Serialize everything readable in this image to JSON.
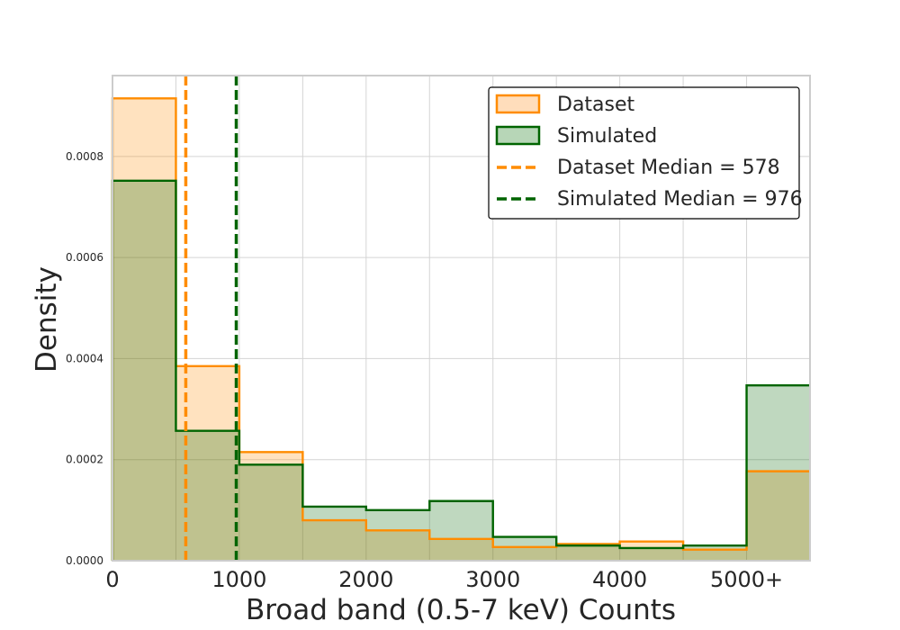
{
  "chart_data": {
    "type": "histogram",
    "xlabel": "Broad band (0.5-7 keV) Counts",
    "ylabel": "Density",
    "xlim": [
      0,
      5500
    ],
    "ylim": [
      0,
      0.00096
    ],
    "grid": true,
    "legend_position": "top-right",
    "bin_edges": [
      0,
      500,
      1000,
      1500,
      2000,
      2500,
      3000,
      3500,
      4000,
      4500,
      5000,
      5500
    ],
    "x_ticks": [
      {
        "value": 0,
        "label": "0"
      },
      {
        "value": 1000,
        "label": "1000"
      },
      {
        "value": 2000,
        "label": "2000"
      },
      {
        "value": 3000,
        "label": "3000"
      },
      {
        "value": 4000,
        "label": "4000"
      },
      {
        "value": 5000,
        "label": "5000+"
      }
    ],
    "y_ticks": [
      {
        "value": 0,
        "label": "0.0000"
      },
      {
        "value": 0.0002,
        "label": "0.0002"
      },
      {
        "value": 0.0004,
        "label": "0.0004"
      },
      {
        "value": 0.0006,
        "label": "0.0006"
      },
      {
        "value": 0.0008,
        "label": "0.0008"
      }
    ],
    "series": [
      {
        "name": "Dataset",
        "color": "#ff8c00",
        "fill": "#ffddbb",
        "values": [
          0.000915,
          0.000385,
          0.000215,
          8e-05,
          6e-05,
          4.3e-05,
          2.7e-05,
          3.3e-05,
          3.8e-05,
          2.2e-05,
          0.000177
        ]
      },
      {
        "name": "Simulated",
        "color": "#006400",
        "fill": "#b7d6b7",
        "values": [
          0.000752,
          0.000257,
          0.00019,
          0.000107,
          0.0001,
          0.000118,
          4.7e-05,
          3e-05,
          2.5e-05,
          3e-05,
          0.000347
        ]
      }
    ],
    "medians": [
      {
        "label": "Dataset Median = 578",
        "value": 578,
        "color": "#ff8c00"
      },
      {
        "label": "Simulated Median = 976",
        "value": 976,
        "color": "#006400"
      }
    ]
  }
}
